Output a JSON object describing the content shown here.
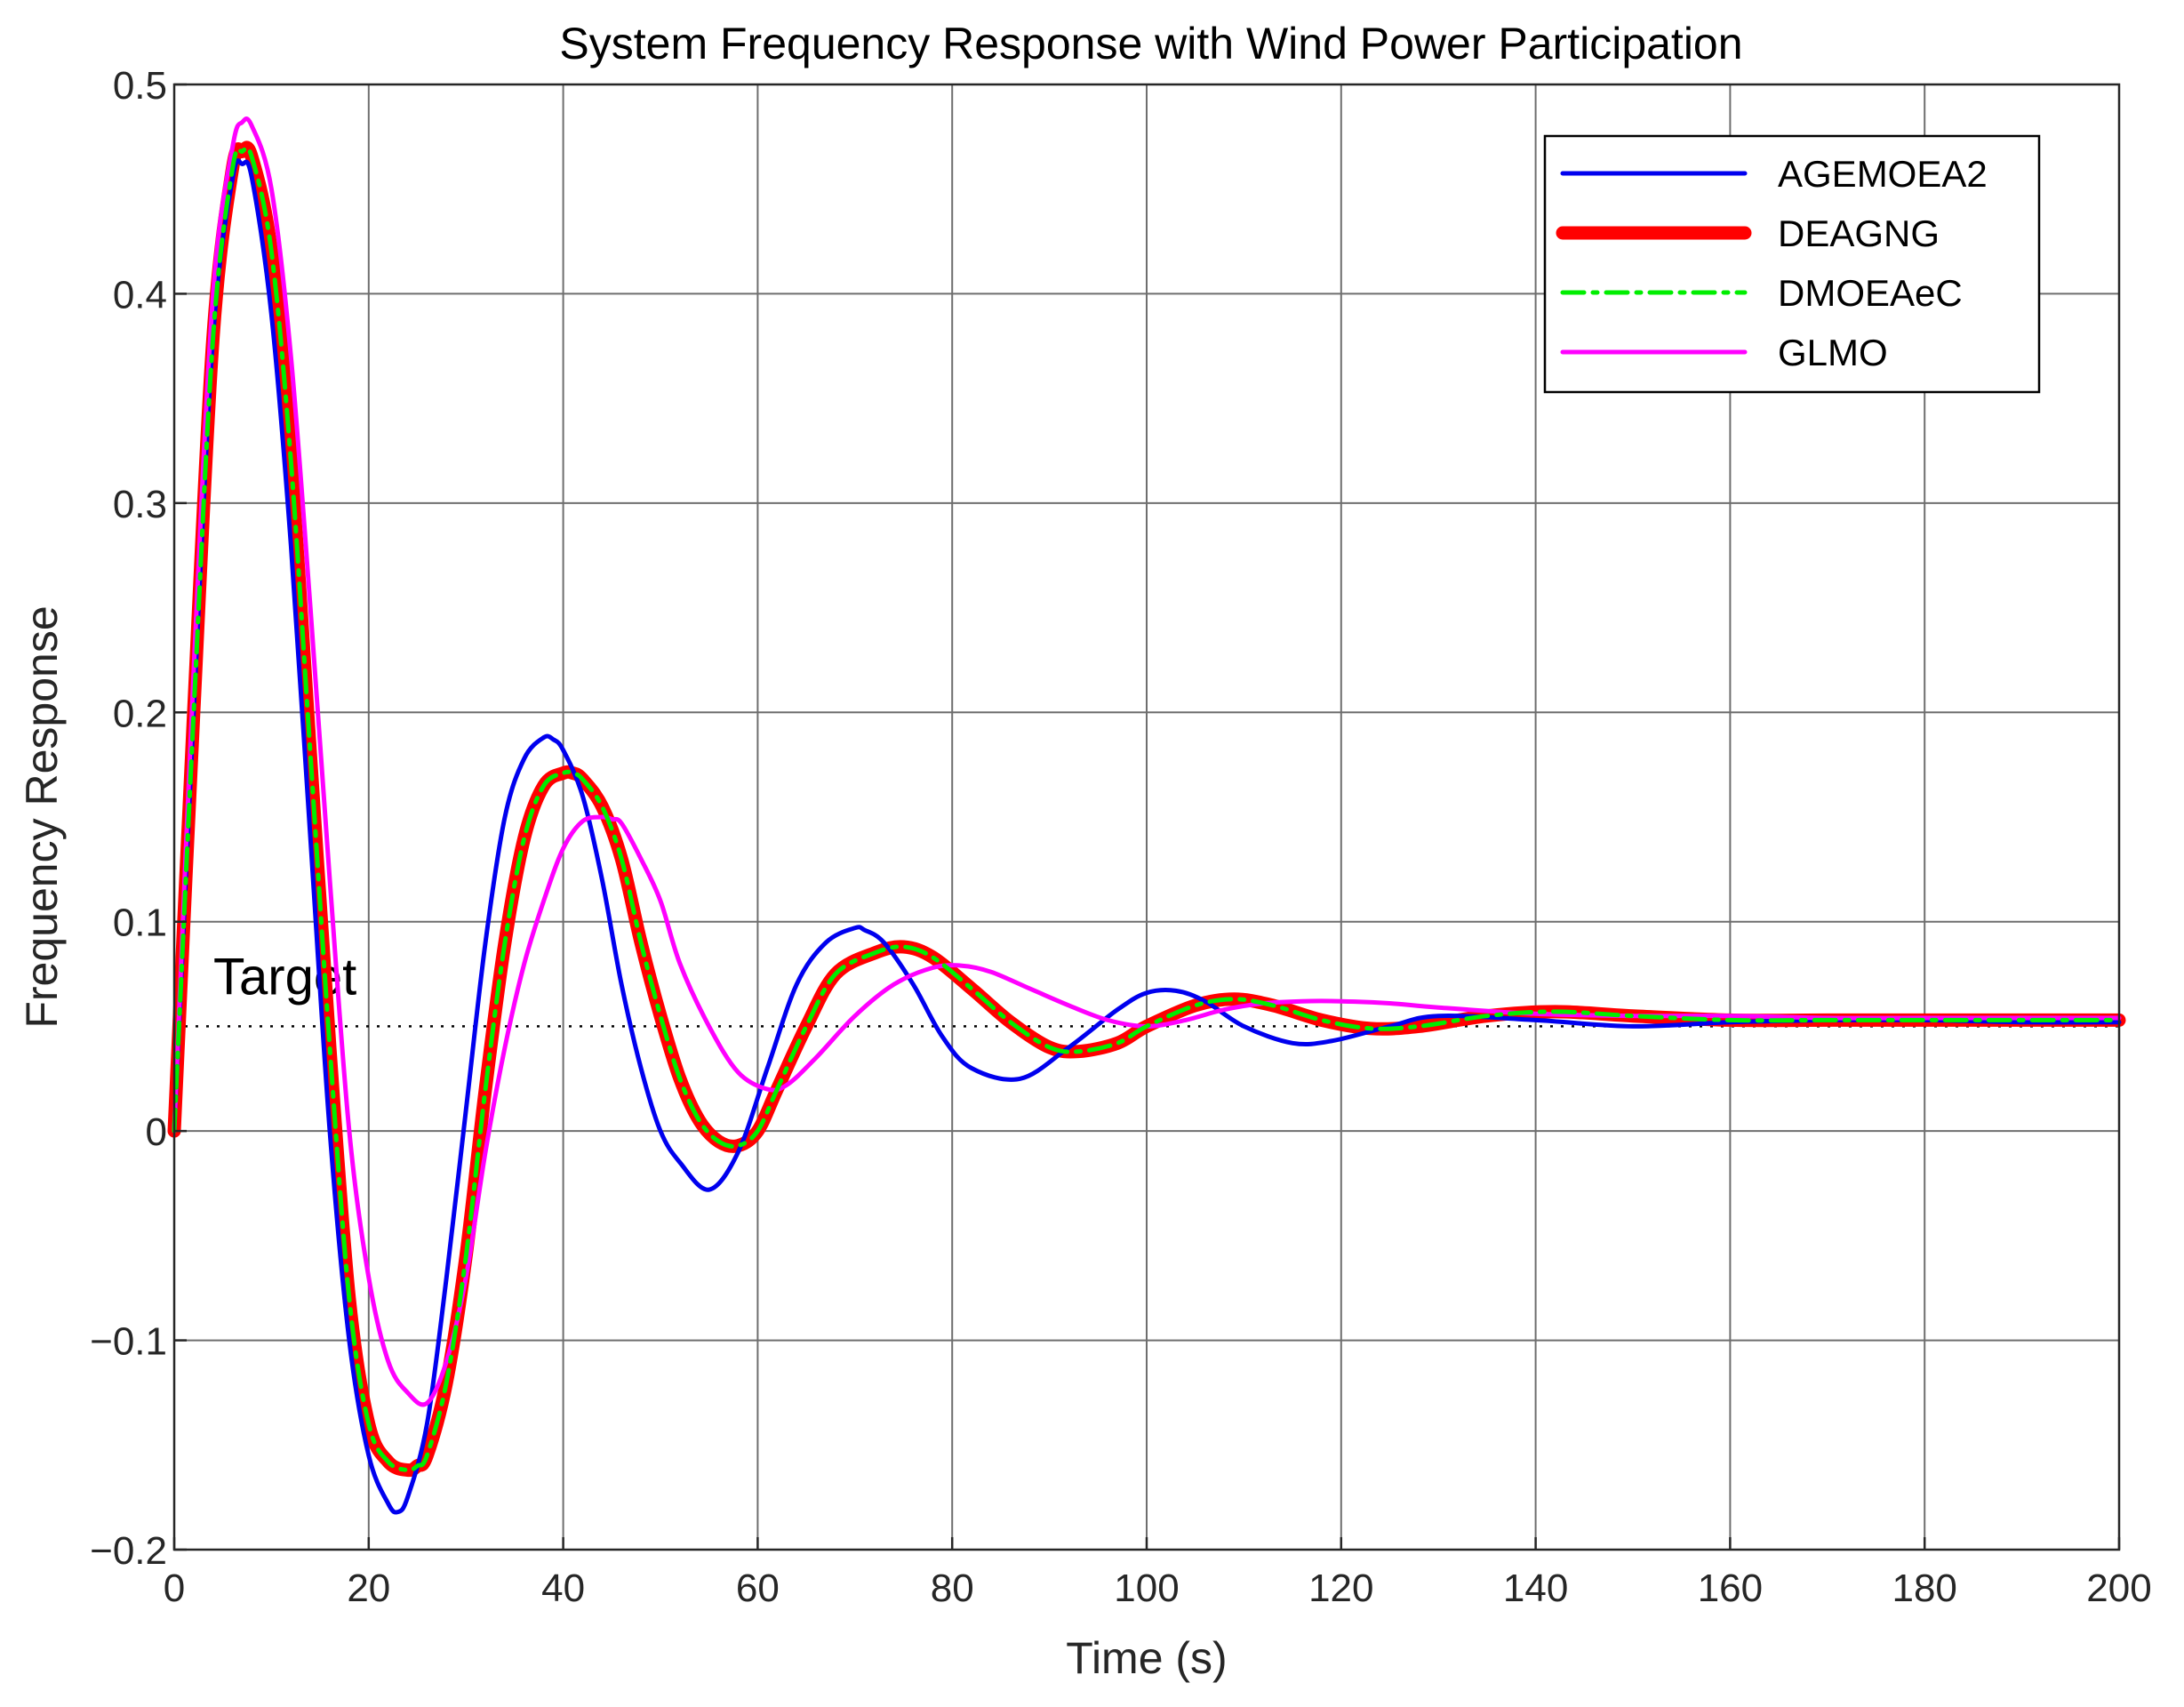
{
  "chart_data": {
    "type": "line",
    "title": "System Frequency Response with Wind Power Participation",
    "xlabel": "Time (s)",
    "ylabel": "Frequency Response",
    "xlim": [
      0,
      200
    ],
    "ylim": [
      -0.2,
      0.5
    ],
    "xticks": [
      0,
      20,
      40,
      60,
      80,
      100,
      120,
      140,
      160,
      180,
      200
    ],
    "yticks": [
      -0.2,
      -0.1,
      0,
      0.1,
      0.2,
      0.3,
      0.4,
      0.5
    ],
    "xtick_labels": [
      "0",
      "20",
      "40",
      "60",
      "80",
      "100",
      "120",
      "140",
      "160",
      "180",
      "200"
    ],
    "ytick_labels": [
      "−0.2",
      "−0.1",
      "0",
      "0.1",
      "0.2",
      "0.3",
      "0.4",
      "0.5"
    ],
    "grid": true,
    "legend_position": "top-right",
    "target": {
      "label": "Target",
      "value": 0.05
    },
    "series": [
      {
        "name": "AGEMOEA2",
        "color": "#0000ee",
        "style": "solid",
        "x": [
          0,
          2,
          4,
          6,
          7,
          8,
          10,
          12,
          14,
          16,
          18,
          20,
          22,
          23,
          24,
          26,
          28,
          30,
          32,
          34,
          36,
          38,
          39,
          40,
          42,
          44,
          46,
          48,
          50,
          52,
          55,
          58,
          61,
          64,
          67,
          70,
          71,
          73,
          76,
          79,
          82,
          87,
          92,
          97,
          100,
          103,
          106,
          110,
          115,
          119,
          125,
          130,
          140,
          150,
          160,
          170,
          180,
          190,
          200
        ],
        "values": [
          0.0,
          0.2,
          0.38,
          0.455,
          0.462,
          0.455,
          0.39,
          0.28,
          0.14,
          0.0,
          -0.1,
          -0.155,
          -0.178,
          -0.182,
          -0.175,
          -0.14,
          -0.07,
          0.01,
          0.09,
          0.15,
          0.178,
          0.188,
          0.187,
          0.182,
          0.16,
          0.12,
          0.07,
          0.03,
          0.0,
          -0.015,
          -0.028,
          -0.01,
          0.03,
          0.07,
          0.09,
          0.097,
          0.096,
          0.09,
          0.07,
          0.045,
          0.03,
          0.025,
          0.04,
          0.058,
          0.066,
          0.067,
          0.062,
          0.05,
          0.042,
          0.043,
          0.05,
          0.055,
          0.053,
          0.05,
          0.052,
          0.053,
          0.053,
          0.052,
          0.052
        ]
      },
      {
        "name": "DEAGNG",
        "color": "#ff0000",
        "style": "thick",
        "x": [
          0,
          2,
          4,
          6,
          7,
          8,
          10,
          12,
          14,
          16,
          18,
          20,
          22,
          24,
          25,
          26,
          28,
          30,
          32,
          34,
          36,
          38,
          40,
          41,
          42,
          44,
          46,
          48,
          50,
          52,
          54,
          56,
          58,
          60,
          62,
          65,
          68,
          72,
          75,
          78,
          82,
          86,
          90,
          93,
          97,
          100,
          105,
          109,
          113,
          118,
          123,
          128,
          135,
          142,
          150,
          160,
          170,
          180,
          190,
          200
        ],
        "values": [
          0.0,
          0.2,
          0.38,
          0.46,
          0.468,
          0.465,
          0.42,
          0.32,
          0.18,
          0.04,
          -0.08,
          -0.14,
          -0.158,
          -0.162,
          -0.16,
          -0.155,
          -0.12,
          -0.06,
          0.02,
          0.09,
          0.14,
          0.165,
          0.171,
          0.171,
          0.168,
          0.155,
          0.13,
          0.09,
          0.055,
          0.025,
          0.005,
          -0.005,
          -0.007,
          0.0,
          0.02,
          0.05,
          0.075,
          0.085,
          0.088,
          0.083,
          0.068,
          0.052,
          0.04,
          0.038,
          0.042,
          0.05,
          0.06,
          0.063,
          0.06,
          0.053,
          0.049,
          0.05,
          0.055,
          0.057,
          0.055,
          0.053,
          0.053,
          0.053,
          0.053,
          0.053
        ]
      },
      {
        "name": "DMOEAeC",
        "color": "#00ee00",
        "style": "dash-dot",
        "x": [
          0,
          2,
          4,
          6,
          7,
          8,
          10,
          12,
          14,
          16,
          18,
          20,
          22,
          24,
          25,
          26,
          28,
          30,
          32,
          34,
          36,
          38,
          40,
          41,
          42,
          44,
          46,
          48,
          50,
          52,
          54,
          56,
          58,
          60,
          62,
          65,
          68,
          72,
          75,
          78,
          82,
          86,
          90,
          93,
          97,
          100,
          105,
          109,
          113,
          118,
          123,
          128,
          135,
          142,
          150,
          160,
          170,
          180,
          190,
          200
        ],
        "values": [
          0.0,
          0.2,
          0.38,
          0.46,
          0.468,
          0.465,
          0.42,
          0.32,
          0.18,
          0.04,
          -0.08,
          -0.14,
          -0.158,
          -0.162,
          -0.16,
          -0.155,
          -0.12,
          -0.06,
          0.02,
          0.09,
          0.14,
          0.165,
          0.171,
          0.171,
          0.168,
          0.155,
          0.13,
          0.09,
          0.055,
          0.025,
          0.005,
          -0.005,
          -0.007,
          0.0,
          0.02,
          0.05,
          0.075,
          0.085,
          0.088,
          0.083,
          0.068,
          0.052,
          0.04,
          0.038,
          0.042,
          0.05,
          0.06,
          0.063,
          0.06,
          0.053,
          0.049,
          0.05,
          0.055,
          0.057,
          0.055,
          0.053,
          0.053,
          0.053,
          0.053,
          0.053
        ]
      },
      {
        "name": "GLMO",
        "color": "#ff00ff",
        "style": "solid",
        "x": [
          0,
          2,
          4,
          6,
          7,
          8,
          10,
          12,
          14,
          16,
          18,
          20,
          22,
          24,
          26,
          28,
          30,
          32,
          34,
          36,
          38,
          40,
          42,
          44,
          45,
          46,
          48,
          50,
          52,
          55,
          58,
          61,
          63,
          66,
          70,
          74,
          78,
          81,
          84,
          88,
          92,
          96,
          100,
          104,
          108,
          112,
          116,
          120,
          125,
          130,
          140,
          150,
          160,
          170,
          180,
          190,
          200
        ],
        "values": [
          0.0,
          0.22,
          0.4,
          0.47,
          0.482,
          0.48,
          0.45,
          0.37,
          0.25,
          0.12,
          0.0,
          -0.07,
          -0.11,
          -0.125,
          -0.13,
          -0.11,
          -0.07,
          -0.01,
          0.04,
          0.08,
          0.11,
          0.135,
          0.148,
          0.15,
          0.149,
          0.147,
          0.13,
          0.11,
          0.08,
          0.05,
          0.028,
          0.02,
          0.022,
          0.035,
          0.055,
          0.07,
          0.078,
          0.079,
          0.076,
          0.068,
          0.06,
          0.053,
          0.05,
          0.053,
          0.058,
          0.061,
          0.062,
          0.062,
          0.061,
          0.059,
          0.056,
          0.055,
          0.055,
          0.054,
          0.054,
          0.054,
          0.054
        ]
      }
    ]
  }
}
